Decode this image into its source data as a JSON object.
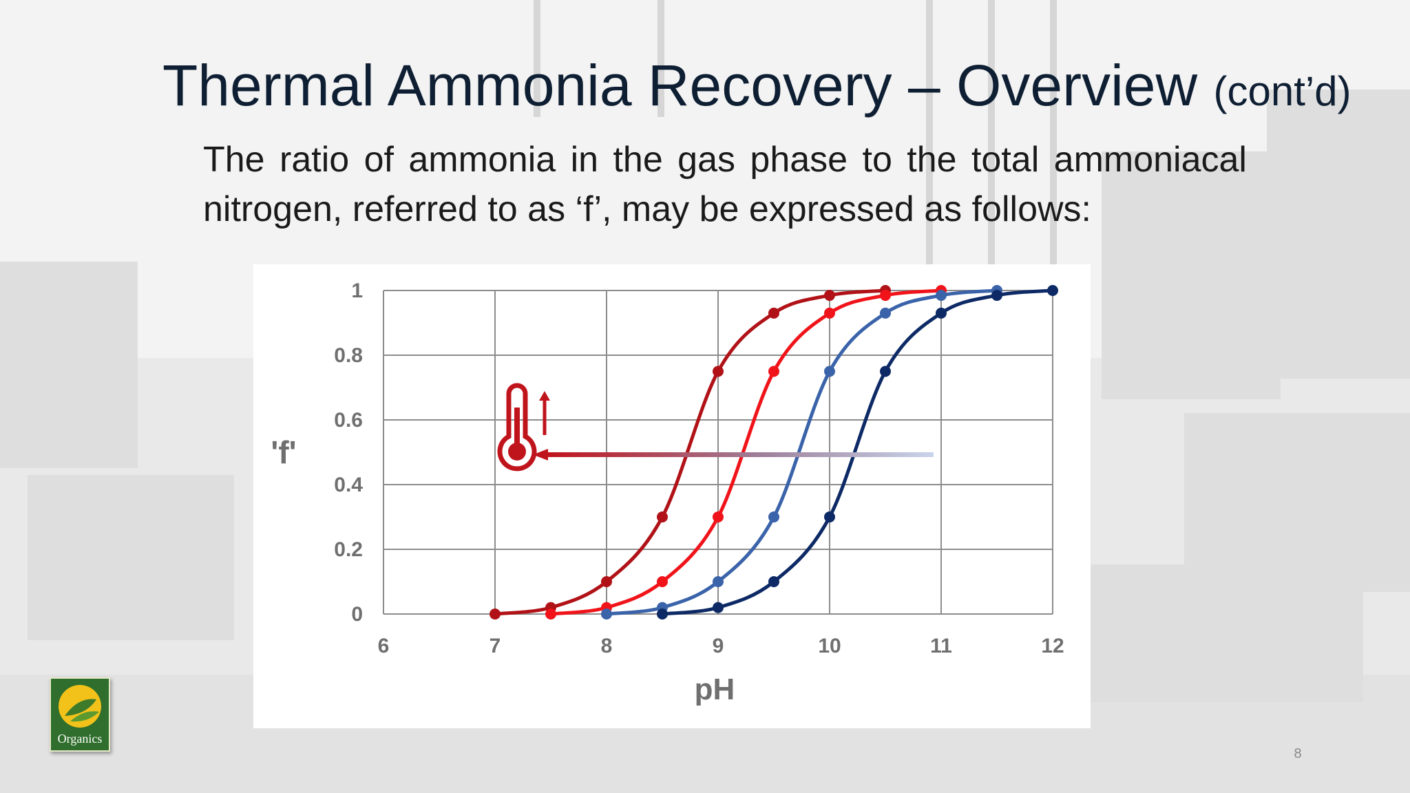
{
  "slide": {
    "title": "Thermal Ammonia Recovery – Overview",
    "title_suffix": "(cont’d)",
    "body": "The ratio of ammonia in the gas phase to the total ammoniacal nitrogen, referred to as ‘f’, may be expressed as follows:",
    "page_number": "8",
    "logo_text": "Organics"
  },
  "chart_data": {
    "type": "line",
    "xlabel": "pH",
    "ylabel": "'f'",
    "xlim": [
      6,
      12
    ],
    "ylim": [
      0,
      1
    ],
    "x_ticks": [
      "6",
      "7",
      "8",
      "9",
      "10",
      "11",
      "12"
    ],
    "y_ticks": [
      "0",
      "0.2",
      "0.4",
      "0.6",
      "0.8",
      "1"
    ],
    "grid": true,
    "annotation": "thermometer icon with upward arrow; horizontal arrow pointing toward lower pH (curves shift left as temperature increases)",
    "series": [
      {
        "color": "#b01217",
        "x": [
          7,
          7.5,
          8,
          8.5,
          9,
          9.5,
          10,
          10.5
        ],
        "y": [
          0.0,
          0.02,
          0.1,
          0.3,
          0.75,
          0.93,
          0.985,
          1.0
        ]
      },
      {
        "color": "#f0141a",
        "x": [
          7.5,
          8,
          8.5,
          9,
          9.5,
          10,
          10.5,
          11
        ],
        "y": [
          0.0,
          0.02,
          0.1,
          0.3,
          0.75,
          0.93,
          0.985,
          1.0
        ]
      },
      {
        "color": "#3a63aa",
        "x": [
          8,
          8.5,
          9,
          9.5,
          10,
          10.5,
          11,
          11.5
        ],
        "y": [
          0.0,
          0.02,
          0.1,
          0.3,
          0.75,
          0.93,
          0.985,
          1.0
        ]
      },
      {
        "color": "#0d2a66",
        "x": [
          8.5,
          9,
          9.5,
          10,
          10.5,
          11,
          11.5,
          12
        ],
        "y": [
          0.0,
          0.02,
          0.1,
          0.3,
          0.75,
          0.93,
          0.985,
          1.0
        ]
      }
    ]
  },
  "colors": {
    "title_text": "#0f1f33",
    "grid": "#8c8c8c",
    "axis_text": "#6f6f6f",
    "annotation_red": "#c0141c",
    "arrow_fade": "#c8d4ea",
    "logo_green": "#2f6e2c",
    "logo_sun": "#f2c21a"
  },
  "icons": [
    "thermometer-icon",
    "up-arrow-icon",
    "left-arrow-icon",
    "organics-logo-icon"
  ]
}
